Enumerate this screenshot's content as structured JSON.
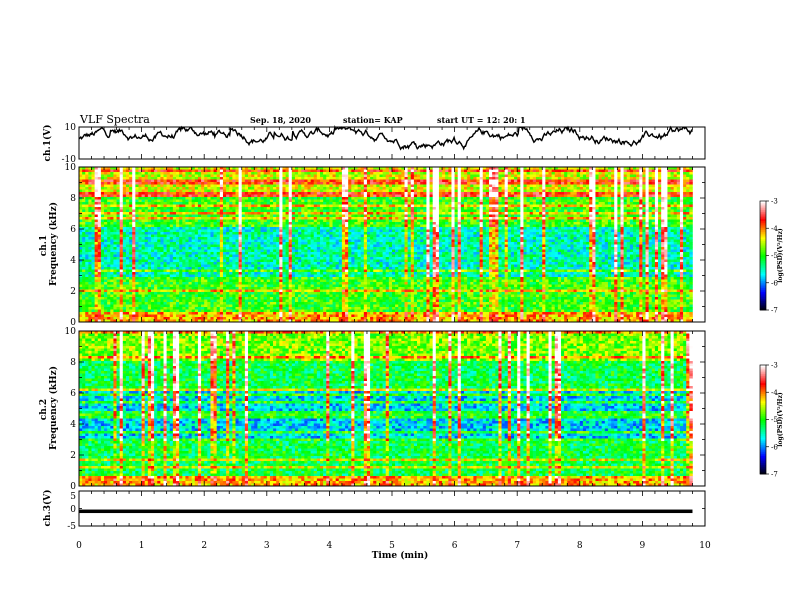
{
  "header": {
    "title": "VLF Spectra",
    "date": "Sep. 18, 2020",
    "station": "station= KAP",
    "start_time": "start  UT =   12: 20: 1"
  },
  "chart_data": [
    {
      "type": "line",
      "panel": "ch1-waveform",
      "ylabel": "ch.1(V)",
      "ylim": [
        -10,
        10
      ],
      "yticks": [
        "10",
        "-10"
      ],
      "xlim": [
        0,
        10
      ],
      "trace_color": "#000000"
    },
    {
      "type": "heatmap",
      "panel": "ch1-spectrogram",
      "ylabel": "ch.1\nFrequency  (kHz)",
      "ylim": [
        0,
        10
      ],
      "yticks": [
        "0",
        "2",
        "4",
        "6",
        "8",
        "10"
      ],
      "xlim": [
        0,
        10
      ],
      "data_end_min": 9.8,
      "colorbar": {
        "label": "log(PSD)(V²/Hz)",
        "range": [
          -7,
          -3
        ],
        "ticks": [
          "-3",
          "-4",
          "-5",
          "-6",
          "-7"
        ],
        "colors": [
          "#000000",
          "#0000ff",
          "#00ffff",
          "#00ff00",
          "#ffff00",
          "#ff0000",
          "#ffffff"
        ]
      }
    },
    {
      "type": "heatmap",
      "panel": "ch2-spectrogram",
      "ylabel": "ch.2\nFrequency  (kHz)",
      "ylim": [
        0,
        10
      ],
      "yticks": [
        "0",
        "2",
        "4",
        "6",
        "8",
        "10"
      ],
      "xlim": [
        0,
        10
      ],
      "data_end_min": 9.8,
      "colorbar": {
        "label": "log(PSD)(V²/Hz)",
        "range": [
          -7,
          -3
        ],
        "ticks": [
          "-3",
          "-4",
          "-5",
          "-6",
          "-7"
        ],
        "colors": [
          "#000000",
          "#0000ff",
          "#00ffff",
          "#00ff00",
          "#ffff00",
          "#ff0000",
          "#ffffff"
        ]
      }
    },
    {
      "type": "line",
      "panel": "ch3-waveform",
      "ylabel": "ch.3(V)",
      "ylim": [
        -5,
        5
      ],
      "yticks": [
        "5",
        "0",
        "-5"
      ],
      "xlim": [
        0,
        10
      ],
      "series": [
        {
          "values_band": [
            -1.3,
            -0.3
          ]
        }
      ],
      "trace_color": "#000000"
    }
  ],
  "xaxis": {
    "label": "Time  (min)",
    "ticks": [
      "0",
      "1",
      "2",
      "3",
      "4",
      "5",
      "6",
      "7",
      "8",
      "9",
      "10"
    ]
  }
}
